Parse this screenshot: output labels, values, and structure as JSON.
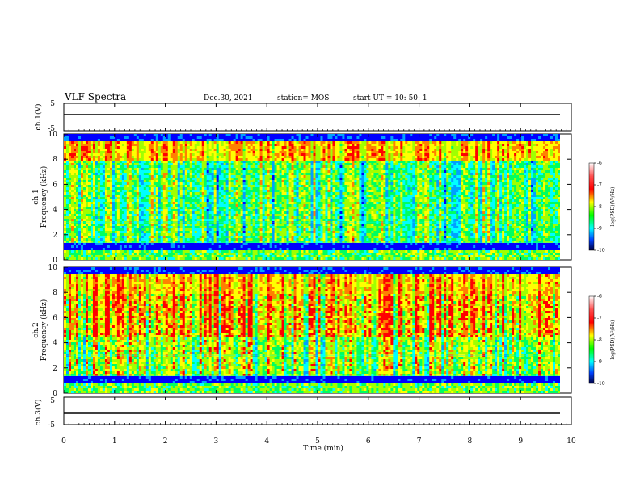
{
  "header": {
    "title": "VLF Spectra",
    "date": "Dec.30, 2021",
    "station": "station= MOS",
    "start": "start  UT  =   10: 50: 1"
  },
  "chart_data": [
    {
      "type": "line",
      "panel": "ch1-waveform",
      "ylabel": "ch.1(V)",
      "ylim": [
        -5,
        5
      ],
      "yticks": [
        "5",
        "-5"
      ],
      "x": [
        0,
        10
      ],
      "values": [
        -1.5,
        -1.5
      ],
      "color": "#000000"
    },
    {
      "type": "heatmap",
      "panel": "ch1-spectrogram",
      "ylabel_lines": [
        "ch.1",
        "Frequency (kHz)"
      ],
      "ylim": [
        0,
        10
      ],
      "yticks": [
        "0",
        "2",
        "4",
        "6",
        "8",
        "10"
      ],
      "xlim": [
        0,
        9.8
      ],
      "colorbar": {
        "label": "log(PSD)(V²/Hz)",
        "range": [
          -10,
          -6
        ],
        "ticks": [
          "-6",
          "-7",
          "-8",
          "-9",
          "-10"
        ]
      }
    },
    {
      "type": "heatmap",
      "panel": "ch2-spectrogram",
      "ylabel_lines": [
        "ch.2",
        "Frequency (kHz)"
      ],
      "ylim": [
        0,
        10
      ],
      "yticks": [
        "0",
        "2",
        "4",
        "6",
        "8",
        "10"
      ],
      "xlim": [
        0,
        9.8
      ],
      "colorbar": {
        "label": "log(PSD)(V²/Hz)",
        "range": [
          -10,
          -6
        ],
        "ticks": [
          "-6",
          "-7",
          "-8",
          "-9",
          "-10"
        ]
      }
    },
    {
      "type": "line",
      "panel": "ch3-waveform",
      "ylabel": "ch.3(V)",
      "ylim": [
        -5,
        5
      ],
      "yticks": [
        "5",
        "-5"
      ],
      "x": [
        0,
        10
      ],
      "values": [
        -1.5,
        -1.5
      ],
      "color": "#000000"
    }
  ],
  "xaxis": {
    "label": "Time (min)",
    "range": [
      0,
      10
    ],
    "ticks": [
      "0",
      "1",
      "2",
      "3",
      "4",
      "5",
      "6",
      "7",
      "8",
      "9",
      "10"
    ]
  },
  "colorscale": [
    "#ffffff",
    "#ff6060",
    "#ff0000",
    "#ffff00",
    "#00ff00",
    "#00ffff",
    "#0060ff",
    "#0000c0",
    "#000060",
    "#000000"
  ]
}
